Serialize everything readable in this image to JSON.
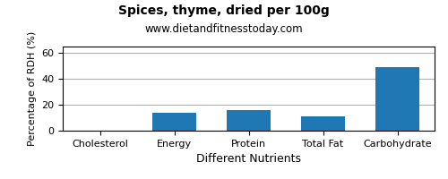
{
  "chart_data": {
    "type": "bar",
    "title": "Spices, thyme, dried per 100g",
    "subtitle": "www.dietandfitnesstoday.com",
    "xlabel": "Different Nutrients",
    "ylabel": "Percentage of RDH (%)",
    "categories": [
      "Cholesterol",
      "Energy",
      "Protein",
      "Total Fat",
      "Carbohydrate"
    ],
    "values": [
      0,
      14,
      16,
      11,
      49
    ],
    "ylim": [
      0,
      65
    ],
    "yticks": [
      0,
      20,
      40,
      60
    ],
    "grid": true
  }
}
